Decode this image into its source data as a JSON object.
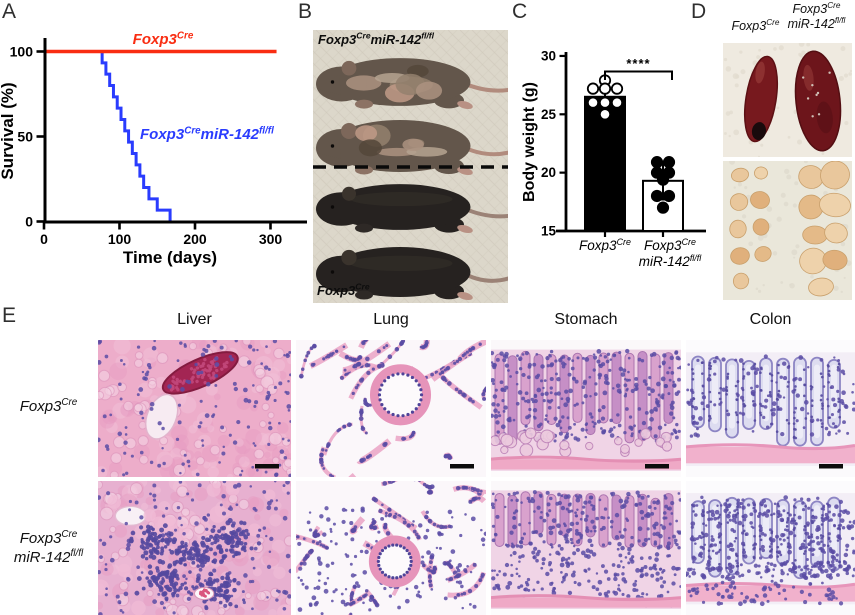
{
  "panel_letters": {
    "a": "A",
    "b": "B",
    "c": "C",
    "d": "D",
    "e": "E"
  },
  "genotype_rich": {
    "control": [
      [
        "Foxp3",
        0
      ],
      [
        "Cre",
        1
      ]
    ],
    "ko": [
      [
        "Foxp3",
        0
      ],
      [
        "Cre",
        1
      ],
      [
        "miR-142",
        0
      ],
      [
        "fl/fl",
        1
      ]
    ],
    "ko_line1": [
      [
        "Foxp3",
        0
      ],
      [
        "Cre",
        1
      ]
    ],
    "ko_line2": [
      [
        "miR-142",
        0
      ],
      [
        "fl/fl",
        1
      ]
    ]
  },
  "chart_data": [
    {
      "type": "line",
      "panel": "A",
      "subtype": "kaplan-meier-survival",
      "xlabel": "Time (days)",
      "ylabel": "Survival (%)",
      "xlim": [
        0,
        345
      ],
      "ylim": [
        0,
        100
      ],
      "xticks": [
        0,
        100,
        200,
        300
      ],
      "yticks": [
        0,
        50,
        100
      ],
      "grid": false,
      "legend_position": "inline",
      "series": [
        {
          "name": "Foxp3Cre",
          "name_rich": [
            [
              "Foxp3",
              0
            ],
            [
              "Cre",
              1
            ]
          ],
          "color": "#f92d12",
          "style": "flat-line",
          "points": [
            [
              0,
              100
            ],
            [
              308,
              100
            ]
          ]
        },
        {
          "name": "Foxp3Cre miR-142fl/fl",
          "name_rich": [
            [
              "Foxp3",
              0
            ],
            [
              "Cre",
              1
            ],
            [
              "miR-142",
              0
            ],
            [
              "fl/fl",
              1
            ]
          ],
          "color": "#2a3cfe",
          "style": "step",
          "steps": [
            [
              0,
              100
            ],
            [
              77,
              93.3
            ],
            [
              82,
              86.7
            ],
            [
              87,
              80
            ],
            [
              92,
              73.3
            ],
            [
              97,
              66.7
            ],
            [
              102,
              60
            ],
            [
              107,
              53.3
            ],
            [
              112,
              46.7
            ],
            [
              117,
              40
            ],
            [
              122,
              33.3
            ],
            [
              127,
              26.7
            ],
            [
              132,
              20
            ],
            [
              139,
              13.3
            ],
            [
              150,
              6.7
            ],
            [
              167,
              0
            ]
          ]
        }
      ]
    },
    {
      "type": "bar",
      "panel": "C",
      "ylabel": "Body weight (g)",
      "ylim": [
        15,
        30
      ],
      "yticks": [
        15,
        20,
        25,
        30
      ],
      "significance": "****",
      "bars": [
        {
          "category": "Foxp3Cre",
          "category_rich": [
            [
              "Foxp3",
              0
            ],
            [
              "Cre",
              1
            ]
          ],
          "mean": 26.5,
          "sem_high": 27.2,
          "fill": "#000000",
          "point_style": "open",
          "points": [
            [
              0,
              27.9
            ],
            [
              -12,
              27.2
            ],
            [
              0,
              27.2
            ],
            [
              12,
              27.2
            ],
            [
              -12,
              26
            ],
            [
              0,
              26
            ],
            [
              12,
              26
            ],
            [
              0,
              25
            ]
          ]
        },
        {
          "category": "Foxp3Cre miR-142fl/fl",
          "category_rich_line1": [
            [
              "Foxp3",
              0
            ],
            [
              "Cre",
              1
            ]
          ],
          "category_rich_line2": [
            [
              "miR-142",
              0
            ],
            [
              "fl/fl",
              1
            ]
          ],
          "mean": 19.3,
          "sem_low": 17.7,
          "sem_high": 20.8,
          "fill": "#ffffff",
          "point_style": "filled",
          "points": [
            [
              -6,
              20.9
            ],
            [
              6,
              20.9
            ],
            [
              -6,
              20
            ],
            [
              6,
              20
            ],
            [
              0,
              19.4
            ],
            [
              -6,
              18
            ],
            [
              6,
              18
            ],
            [
              0,
              17
            ]
          ]
        }
      ]
    }
  ],
  "mouse_photo": {
    "top_group_genotype": "Foxp3Cre miR-142fl/fl",
    "bottom_group_genotype": "Foxp3Cre",
    "mice": [
      {
        "genotype": "ko",
        "appearance": "scruffy"
      },
      {
        "genotype": "ko",
        "appearance": "scruffy-dermatitis"
      },
      {
        "genotype": "control",
        "appearance": "sleek-black"
      },
      {
        "genotype": "control",
        "appearance": "sleek-black"
      }
    ],
    "divider": "dashed-line"
  },
  "organ_photos": {
    "left_column_genotype": "Foxp3Cre",
    "right_column_genotype": "Foxp3Cre miR-142fl/fl",
    "spleens": [
      {
        "genotype": "control",
        "relative_size": "small"
      },
      {
        "genotype": "ko",
        "relative_size": "enlarged"
      }
    ],
    "lymph_nodes": [
      {
        "genotype": "control",
        "count": 9,
        "relative_size": "small"
      },
      {
        "genotype": "ko",
        "count": 9,
        "relative_size": "enlarged"
      }
    ]
  },
  "histology": {
    "columns": [
      "Liver",
      "Lung",
      "Stomach",
      "Colon"
    ],
    "tiles": [
      {
        "tissue": "liver",
        "row": "control",
        "variant": "normal"
      },
      {
        "tissue": "lung",
        "row": "control",
        "variant": "normal"
      },
      {
        "tissue": "stomach",
        "row": "control",
        "variant": "normal"
      },
      {
        "tissue": "colon",
        "row": "control",
        "variant": "normal"
      },
      {
        "tissue": "liver",
        "row": "ko",
        "variant": "infiltrated"
      },
      {
        "tissue": "lung",
        "row": "ko",
        "variant": "infiltrated"
      },
      {
        "tissue": "stomach",
        "row": "ko",
        "variant": "infiltrated"
      },
      {
        "tissue": "colon",
        "row": "ko",
        "variant": "infiltrated"
      }
    ]
  }
}
